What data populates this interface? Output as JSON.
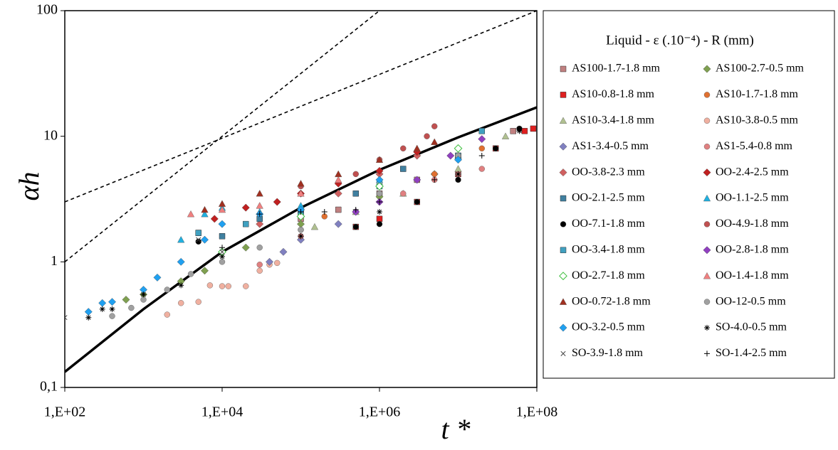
{
  "chart_data": {
    "type": "scatter",
    "x_label": "t *",
    "y_label": "αh",
    "legend_title": "Liquid - ε (.10⁻⁴) - R (mm)",
    "legend": "right",
    "xlog": true,
    "ylog": true,
    "grid": false,
    "xlim": [
      100,
      100000000
    ],
    "ylim": [
      0.1,
      100
    ],
    "xticks": [
      {
        "value": 100,
        "label": "1,E+02"
      },
      {
        "value": 10000,
        "label": "1,E+04"
      },
      {
        "value": 1000000,
        "label": "1,E+06"
      },
      {
        "value": 100000000,
        "label": "1,E+08"
      }
    ],
    "yticks": [
      {
        "value": 0.1,
        "label": "0,1"
      },
      1,
      10,
      100
    ],
    "lines": [
      {
        "style": "dashed",
        "color": "#000000",
        "x": [
          100,
          1000000
        ],
        "y": [
          1,
          100
        ]
      },
      {
        "style": "dashed",
        "color": "#000000",
        "x": [
          100,
          100000000
        ],
        "y": [
          3,
          100
        ]
      },
      {
        "style": "solid",
        "color": "#000000",
        "x": [
          100,
          1000,
          10000,
          100000,
          1000000,
          10000000,
          100000000
        ],
        "y": [
          0.133,
          0.42,
          1.2,
          2.7,
          5.4,
          9.8,
          17
        ]
      }
    ],
    "series": [
      {
        "name": "AS100-1.7-1.8 mm",
        "marker": "square",
        "color": "#c08080",
        "x": [
          100000,
          300000,
          1000000,
          3000000,
          10000000,
          50000000
        ],
        "y": [
          2.2,
          2.6,
          3.5,
          4.5,
          7,
          11
        ]
      },
      {
        "name": "AS100-2.7-0.5 mm",
        "marker": "diamond",
        "color": "#7fa050",
        "x": [
          600,
          1000,
          3000,
          6000,
          20000,
          100000,
          1000000,
          5000000
        ],
        "y": [
          0.5,
          0.55,
          0.7,
          0.85,
          1.3,
          2,
          3.3,
          5
        ]
      },
      {
        "name": "AS10-0.8-1.8 mm",
        "marker": "square",
        "color": "#e02020",
        "x": [
          500000,
          1000000,
          3000000,
          10000000,
          30000000,
          70000000,
          90000000
        ],
        "y": [
          1.9,
          2.2,
          3,
          5,
          8,
          11,
          11.5
        ]
      },
      {
        "name": "AS10-1.7-1.8 mm",
        "marker": "circle",
        "color": "#e07030",
        "x": [
          200000,
          1000000,
          5000000,
          20000000
        ],
        "y": [
          2.3,
          3.5,
          5,
          8
        ]
      },
      {
        "name": "AS10-3.4-1.8 mm",
        "marker": "triangle",
        "color": "#b0c090",
        "x": [
          150000,
          500000,
          2000000,
          10000000,
          40000000
        ],
        "y": [
          1.9,
          2.5,
          3.5,
          5.5,
          10
        ]
      },
      {
        "name": "AS10-3.8-0.5 mm",
        "marker": "circle",
        "color": "#f0b0a0",
        "x": [
          2000,
          3000,
          5000,
          7000,
          10000,
          12000,
          20000,
          30000,
          40000,
          50000
        ],
        "y": [
          0.38,
          0.47,
          0.48,
          0.65,
          0.64,
          0.64,
          0.64,
          0.85,
          0.95,
          0.98
        ]
      },
      {
        "name": "AS1-3.4-0.5 mm",
        "marker": "diamond",
        "color": "#8080c0",
        "x": [
          40000,
          60000,
          100000,
          300000
        ],
        "y": [
          1.0,
          1.2,
          1.5,
          2
        ]
      },
      {
        "name": "AS1-5.4-0.8 mm",
        "marker": "circle",
        "color": "#e08080",
        "x": [
          30000,
          100000,
          500000,
          2000000,
          5000000,
          10000000,
          20000000
        ],
        "y": [
          0.95,
          1.6,
          2.5,
          3.5,
          4.5,
          5,
          5.5
        ]
      },
      {
        "name": "OO-3.8-2.3 mm",
        "marker": "diamond",
        "color": "#d06060",
        "x": [
          30000,
          100000,
          300000,
          1000000,
          3000000
        ],
        "y": [
          2,
          2.6,
          3.5,
          5,
          7
        ]
      },
      {
        "name": "OO-2.4-2.5 mm",
        "marker": "diamond",
        "color": "#c02020",
        "x": [
          8000,
          20000,
          50000,
          100000,
          300000,
          1000000,
          3000000
        ],
        "y": [
          2.2,
          2.7,
          3,
          3.5,
          4.2,
          5.3,
          7.5
        ]
      },
      {
        "name": "OO-2.1-2.5 mm",
        "marker": "square",
        "color": "#4080a0",
        "x": [
          5000,
          10000,
          30000,
          100000,
          500000,
          2000000
        ],
        "y": [
          1.7,
          1.6,
          2.2,
          2.5,
          3.5,
          5.5
        ]
      },
      {
        "name": "OO-1.1-2.5 mm",
        "marker": "triangle",
        "color": "#20b0e0",
        "x": [
          3000,
          6000,
          10000,
          30000,
          100000,
          1000000,
          10000000
        ],
        "y": [
          1.5,
          2.4,
          2.7,
          2.5,
          2.8,
          4.5,
          7
        ]
      },
      {
        "name": "OO-7.1-1.8 mm",
        "marker": "circle",
        "color": "#000000",
        "x": [
          5000,
          100000,
          500000,
          1000000,
          3000000,
          10000000,
          30000000,
          60000000
        ],
        "y": [
          1.45,
          1.8,
          1.9,
          2,
          3,
          4.5,
          8,
          11.5
        ]
      },
      {
        "name": "OO-4.9-1.8 mm",
        "marker": "circle",
        "color": "#c05050",
        "x": [
          100000,
          500000,
          1000000,
          2000000,
          4000000,
          5000000
        ],
        "y": [
          4,
          5,
          6.5,
          8,
          10,
          12
        ]
      },
      {
        "name": "OO-3.4-1.8 mm",
        "marker": "square",
        "color": "#40a0c0",
        "x": [
          5000,
          20000,
          100000,
          1000000,
          10000000,
          20000000
        ],
        "y": [
          1.7,
          2,
          2.5,
          4,
          7,
          11
        ]
      },
      {
        "name": "OO-2.8-1.8 mm",
        "marker": "diamond",
        "color": "#9040c0",
        "x": [
          500000,
          1000000,
          3000000,
          8000000,
          20000000
        ],
        "y": [
          2.5,
          3,
          4.5,
          7,
          9.5
        ]
      },
      {
        "name": "OO-2.7-1.8 mm",
        "marker": "diamond-open",
        "color": "#40c040",
        "x": [
          10000,
          100000,
          1000000,
          10000000
        ],
        "y": [
          1.2,
          2.3,
          4,
          8
        ]
      },
      {
        "name": "OO-1.4-1.8 mm",
        "marker": "triangle",
        "color": "#f08080",
        "x": [
          4000,
          10000,
          30000,
          100000,
          300000
        ],
        "y": [
          2.4,
          2.6,
          2.8,
          3.5,
          4.5
        ]
      },
      {
        "name": "OO-0.72-1.8 mm",
        "marker": "triangle",
        "color": "#a03020",
        "x": [
          6000,
          10000,
          30000,
          100000,
          300000,
          1000000,
          3000000,
          5000000
        ],
        "y": [
          2.6,
          2.9,
          3.5,
          4.2,
          5,
          6.5,
          8,
          9
        ]
      },
      {
        "name": "OO-12-0.5 mm",
        "marker": "circle",
        "color": "#a0a0a0",
        "x": [
          400,
          700,
          1000,
          2000,
          4000,
          10000,
          30000,
          100000,
          1000000,
          10000000
        ],
        "y": [
          0.37,
          0.43,
          0.5,
          0.6,
          0.8,
          1.0,
          1.3,
          1.8,
          3.5,
          7
        ]
      },
      {
        "name": "OO-3.2-0.5 mm",
        "marker": "diamond",
        "color": "#20a0f0",
        "x": [
          200,
          300,
          400,
          1000,
          1500,
          3000,
          6000,
          10000,
          30000,
          100000,
          1000000,
          10000000
        ],
        "y": [
          0.4,
          0.47,
          0.48,
          0.6,
          0.75,
          1,
          1.5,
          2,
          2.4,
          2.6,
          4.5,
          6.5
        ]
      },
      {
        "name": "SO-4.0-0.5 mm",
        "marker": "star",
        "color": "#000000",
        "x": [
          200,
          300,
          400,
          1000,
          3000,
          10000,
          100000,
          1000000,
          10000000,
          60000000
        ],
        "y": [
          0.36,
          0.42,
          0.42,
          0.55,
          0.65,
          1.1,
          1.6,
          2.5,
          5,
          11
        ]
      },
      {
        "name": "SO-3.9-1.8 mm",
        "marker": "cross",
        "color": "#404040",
        "x": [
          100,
          5000,
          10000
        ],
        "y": [
          0.36,
          1.5,
          1.2
        ]
      },
      {
        "name": "SO-1.4-2.5 mm",
        "marker": "plus",
        "color": "#000000",
        "x": [
          10000,
          30000,
          100000,
          200000,
          500000,
          1000000,
          5000000,
          20000000
        ],
        "y": [
          1.3,
          2.4,
          2.5,
          2.5,
          2.6,
          3,
          4.5,
          7
        ]
      }
    ]
  }
}
